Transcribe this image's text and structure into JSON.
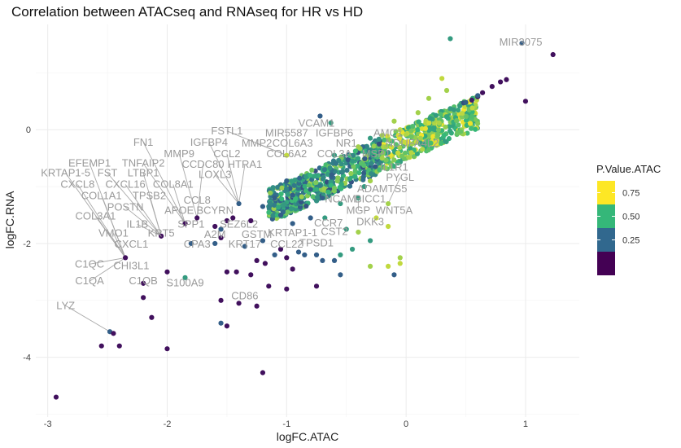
{
  "chart_data": {
    "type": "scatter",
    "title": "Correlation between ATACseq and RNAseq for HR vs HD",
    "xlabel": "logFC.ATAC",
    "ylabel": "logFC.RNA",
    "xlim": [
      -3.1,
      1.45
    ],
    "ylim": [
      -5.05,
      1.85
    ],
    "x_ticks": [
      -3,
      -2,
      -1,
      0,
      1
    ],
    "x_tick_labels": [
      "-3",
      "-2",
      "-1",
      "0",
      "1"
    ],
    "y_ticks": [
      -4,
      -2,
      0
    ],
    "y_tick_labels": [
      "-4",
      "-2",
      "0"
    ],
    "grid": true,
    "legend": {
      "title": "P.Value.ATAC",
      "placement": "right",
      "entries": [
        {
          "label": "0.75",
          "color": "#FDE725"
        },
        {
          "label": "0.50",
          "color": "#35B779"
        },
        {
          "label": "0.25",
          "color": "#31688E"
        },
        {
          "label": "",
          "color": "#440154"
        }
      ],
      "tick_labels": [
        "0.75",
        "0.50",
        "0.25"
      ]
    },
    "color_scale": [
      "#440154",
      "#31688E",
      "#35B779",
      "#FDE725"
    ],
    "points": [
      {
        "x": 0.37,
        "y": 1.6,
        "p": 0.55
      },
      {
        "x": 0.97,
        "y": 1.52,
        "p": 0.3
      },
      {
        "x": 1.23,
        "y": 1.32,
        "p": 0.05
      },
      {
        "x": 0.84,
        "y": 0.88,
        "p": 0.05
      },
      {
        "x": 0.79,
        "y": 0.84,
        "p": 0.05
      },
      {
        "x": 0.72,
        "y": 0.76,
        "p": 0.05
      },
      {
        "x": 0.64,
        "y": 0.65,
        "p": 0.05
      },
      {
        "x": 0.6,
        "y": 0.58,
        "p": 0.05
      },
      {
        "x": 0.55,
        "y": 0.52,
        "p": 0.1
      },
      {
        "x": 0.48,
        "y": 0.47,
        "p": 0.25
      },
      {
        "x": 0.3,
        "y": 0.9,
        "p": 0.9
      },
      {
        "x": 0.34,
        "y": 0.69,
        "p": 0.85
      },
      {
        "x": 0.19,
        "y": 0.55,
        "p": 0.85
      },
      {
        "x": 0.37,
        "y": 0.37,
        "p": 0.55
      },
      {
        "x": -0.72,
        "y": 0.24,
        "p": 0.3
      },
      {
        "x": -0.63,
        "y": 0.12,
        "p": 0.55
      },
      {
        "x": -1.0,
        "y": -0.45,
        "p": 0.9
      },
      {
        "x": 1.0,
        "y": 0.5,
        "p": 0.05
      },
      {
        "x": -0.1,
        "y": 0.15,
        "p": 0.85
      },
      {
        "x": 0.25,
        "y": 0.25,
        "p": 0.55
      },
      {
        "x": -0.3,
        "y": -0.15,
        "p": 0.55
      },
      {
        "x": 0.05,
        "y": -0.25,
        "p": 0.85
      },
      {
        "x": 0.12,
        "y": -0.15,
        "p": 0.85
      },
      {
        "x": -0.2,
        "y": -0.5,
        "p": 0.85
      },
      {
        "x": -0.15,
        "y": -0.4,
        "p": 0.55
      },
      {
        "x": -0.45,
        "y": -0.55,
        "p": 0.55
      },
      {
        "x": -0.3,
        "y": -0.9,
        "p": 0.85
      },
      {
        "x": -0.35,
        "y": -1.0,
        "p": 0.55
      },
      {
        "x": -0.15,
        "y": -1.3,
        "p": 0.85
      },
      {
        "x": -0.4,
        "y": -1.2,
        "p": 0.55
      },
      {
        "x": -0.55,
        "y": -1.3,
        "p": 0.55
      },
      {
        "x": -0.7,
        "y": -1.2,
        "p": 0.3
      },
      {
        "x": -0.8,
        "y": -1.05,
        "p": 0.3
      },
      {
        "x": -1.0,
        "y": -0.9,
        "p": 0.3
      },
      {
        "x": -0.95,
        "y": -1.15,
        "p": 0.3
      },
      {
        "x": -1.1,
        "y": -1.2,
        "p": 0.3
      },
      {
        "x": -1.2,
        "y": -1.35,
        "p": 0.3
      },
      {
        "x": -1.3,
        "y": -1.6,
        "p": 0.05
      },
      {
        "x": -1.4,
        "y": -1.3,
        "p": 0.3
      },
      {
        "x": -1.45,
        "y": -1.55,
        "p": 0.05
      },
      {
        "x": -1.5,
        "y": -1.6,
        "p": 0.05
      },
      {
        "x": -1.55,
        "y": -1.75,
        "p": 0.3
      },
      {
        "x": -1.55,
        "y": -1.9,
        "p": 0.05
      },
      {
        "x": -1.75,
        "y": -1.55,
        "p": 0.05
      },
      {
        "x": -1.85,
        "y": -1.65,
        "p": 0.05
      },
      {
        "x": -1.8,
        "y": -2.0,
        "p": 0.3
      },
      {
        "x": -2.05,
        "y": -1.87,
        "p": 0.05
      },
      {
        "x": -1.6,
        "y": -2.0,
        "p": 0.3
      },
      {
        "x": -1.35,
        "y": -2.05,
        "p": 0.3
      },
      {
        "x": -1.2,
        "y": -1.95,
        "p": 0.3
      },
      {
        "x": -1.25,
        "y": -2.3,
        "p": 0.05
      },
      {
        "x": -1.18,
        "y": -2.35,
        "p": 0.05
      },
      {
        "x": -1.1,
        "y": -2.2,
        "p": 0.3
      },
      {
        "x": -1.05,
        "y": -2.1,
        "p": 0.05
      },
      {
        "x": -1.0,
        "y": -2.25,
        "p": 0.05
      },
      {
        "x": -0.95,
        "y": -2.45,
        "p": 0.05
      },
      {
        "x": -0.9,
        "y": -2.15,
        "p": 0.3
      },
      {
        "x": -0.85,
        "y": -2.2,
        "p": 0.3
      },
      {
        "x": -0.75,
        "y": -2.2,
        "p": 0.3
      },
      {
        "x": -0.7,
        "y": -2.3,
        "p": 0.3
      },
      {
        "x": -0.6,
        "y": -2.3,
        "p": 0.3
      },
      {
        "x": -0.55,
        "y": -2.2,
        "p": 0.55
      },
      {
        "x": -0.45,
        "y": -2.1,
        "p": 0.55
      },
      {
        "x": -0.3,
        "y": -2.4,
        "p": 0.85
      },
      {
        "x": -0.15,
        "y": -2.4,
        "p": 0.9
      },
      {
        "x": -0.05,
        "y": -2.25,
        "p": 0.85
      },
      {
        "x": -0.1,
        "y": -2.55,
        "p": 0.3
      },
      {
        "x": -0.75,
        "y": -2.75,
        "p": 0.05
      },
      {
        "x": -1.0,
        "y": -2.8,
        "p": 0.05
      },
      {
        "x": -1.15,
        "y": -2.75,
        "p": 0.05
      },
      {
        "x": -1.3,
        "y": -2.55,
        "p": 0.05
      },
      {
        "x": -1.42,
        "y": -2.5,
        "p": 0.05
      },
      {
        "x": -1.5,
        "y": -2.5,
        "p": 0.05
      },
      {
        "x": -1.85,
        "y": -2.6,
        "p": 0.55
      },
      {
        "x": -2.0,
        "y": -2.5,
        "p": 0.05
      },
      {
        "x": -1.55,
        "y": -3.0,
        "p": 0.05
      },
      {
        "x": -1.4,
        "y": -3.05,
        "p": 0.05
      },
      {
        "x": -1.25,
        "y": -3.1,
        "p": 0.05
      },
      {
        "x": -2.2,
        "y": -2.7,
        "p": 0.05
      },
      {
        "x": -2.2,
        "y": -2.95,
        "p": 0.05
      },
      {
        "x": -1.5,
        "y": -3.45,
        "p": 0.05
      },
      {
        "x": -1.55,
        "y": -3.4,
        "p": 0.3
      },
      {
        "x": -2.13,
        "y": -3.3,
        "p": 0.05
      },
      {
        "x": -2.48,
        "y": -3.55,
        "p": 0.3
      },
      {
        "x": -2.45,
        "y": -3.58,
        "p": 0.05
      },
      {
        "x": -2.55,
        "y": -3.8,
        "p": 0.05
      },
      {
        "x": -2.4,
        "y": -3.8,
        "p": 0.05
      },
      {
        "x": -2.0,
        "y": -3.85,
        "p": 0.05
      },
      {
        "x": -2.93,
        "y": -4.7,
        "p": 0.05
      },
      {
        "x": -1.2,
        "y": -4.27,
        "p": 0.05
      },
      {
        "x": -0.05,
        "y": -2.35,
        "p": 0.9
      },
      {
        "x": -0.55,
        "y": -2.55,
        "p": 0.3
      },
      {
        "x": -2.35,
        "y": -2.25,
        "p": 0.05
      },
      {
        "x": -1.6,
        "y": -1.7,
        "p": 0.05
      },
      {
        "x": -1.05,
        "y": -1.5,
        "p": 0.3
      },
      {
        "x": -0.95,
        "y": -1.65,
        "p": 0.3
      },
      {
        "x": -0.8,
        "y": -1.55,
        "p": 0.3
      },
      {
        "x": -0.68,
        "y": -1.55,
        "p": 0.55
      },
      {
        "x": -0.5,
        "y": -1.75,
        "p": 0.55
      },
      {
        "x": -0.4,
        "y": -1.8,
        "p": 0.85
      },
      {
        "x": -0.25,
        "y": -1.55,
        "p": 0.9
      },
      {
        "x": -0.15,
        "y": -1.7,
        "p": 0.9
      },
      {
        "x": -0.3,
        "y": -1.95,
        "p": 0.55
      },
      {
        "x": 0.4,
        "y": 0.35,
        "p": 0.55
      },
      {
        "x": 0.45,
        "y": 0.42,
        "p": 0.55
      },
      {
        "x": 0.5,
        "y": 0.48,
        "p": 0.3
      },
      {
        "x": 0.6,
        "y": 0.6,
        "p": 0.3
      },
      {
        "x": 0.2,
        "y": 0.2,
        "p": 0.55
      },
      {
        "x": 0.1,
        "y": 0.3,
        "p": 0.85
      },
      {
        "x": -0.05,
        "y": 0.0,
        "p": 0.9
      },
      {
        "x": -0.2,
        "y": -0.1,
        "p": 0.85
      },
      {
        "x": -0.4,
        "y": -0.3,
        "p": 0.85
      },
      {
        "x": -0.6,
        "y": -0.45,
        "p": 0.55
      }
    ],
    "labels": [
      {
        "text": "MIR3075",
        "x": 0.96,
        "y": 1.48
      },
      {
        "text": "VCAM1",
        "x": -0.75,
        "y": 0.05
      },
      {
        "text": "FSTL1",
        "x": -1.5,
        "y": -0.08
      },
      {
        "text": "MIR5587",
        "x": -1.0,
        "y": -0.12
      },
      {
        "text": "IGFBP6",
        "x": -0.6,
        "y": -0.12
      },
      {
        "text": "AMC1",
        "x": -0.15,
        "y": -0.12
      },
      {
        "text": "FN1",
        "x": -2.2,
        "y": -0.28
      },
      {
        "text": "IGFBP4",
        "x": -1.65,
        "y": -0.28
      },
      {
        "text": "MMP2",
        "x": -1.25,
        "y": -0.3
      },
      {
        "text": "COL6A3",
        "x": -0.95,
        "y": -0.3
      },
      {
        "text": "NR1",
        "x": -0.5,
        "y": -0.3
      },
      {
        "text": "NDUFA4L2",
        "x": 0.05,
        "y": -0.3
      },
      {
        "text": "MMP9",
        "x": -1.9,
        "y": -0.48
      },
      {
        "text": "CCL2",
        "x": -1.5,
        "y": -0.48
      },
      {
        "text": "COL6A2",
        "x": -1.0,
        "y": -0.48
      },
      {
        "text": "COL3A",
        "x": -0.6,
        "y": -0.48
      },
      {
        "text": "MSP1",
        "x": -0.25,
        "y": -0.48
      },
      {
        "text": "EFEMP1",
        "x": -2.65,
        "y": -0.65
      },
      {
        "text": "TNFAIP2",
        "x": -2.2,
        "y": -0.65
      },
      {
        "text": "CCDC80",
        "x": -1.7,
        "y": -0.67
      },
      {
        "text": "HTRA1",
        "x": -1.35,
        "y": -0.67
      },
      {
        "text": "IL1R1",
        "x": -0.1,
        "y": -0.72
      },
      {
        "text": "KRTAP1-5",
        "x": -2.85,
        "y": -0.82
      },
      {
        "text": "FST",
        "x": -2.5,
        "y": -0.82
      },
      {
        "text": "LTBP1",
        "x": -2.2,
        "y": -0.82
      },
      {
        "text": "LOXL3",
        "x": -1.6,
        "y": -0.85
      },
      {
        "text": "PYGL",
        "x": -0.05,
        "y": -0.9
      },
      {
        "text": "CXCL8",
        "x": -2.75,
        "y": -1.02
      },
      {
        "text": "CXCL16",
        "x": -2.35,
        "y": -1.02
      },
      {
        "text": "COL8A1",
        "x": -1.95,
        "y": -1.02
      },
      {
        "text": "ADAMTS5",
        "x": -0.2,
        "y": -1.1
      },
      {
        "text": "COL1A1",
        "x": -2.55,
        "y": -1.22
      },
      {
        "text": "TPSB2",
        "x": -2.15,
        "y": -1.22
      },
      {
        "text": "CCL8",
        "x": -1.75,
        "y": -1.3
      },
      {
        "text": "NCAM",
        "x": -0.55,
        "y": -1.28
      },
      {
        "text": "BICC1",
        "x": -0.3,
        "y": -1.28
      },
      {
        "text": "POSTN",
        "x": -2.35,
        "y": -1.42
      },
      {
        "text": "WNT5A",
        "x": -0.1,
        "y": -1.48
      },
      {
        "text": "COL3A1",
        "x": -2.6,
        "y": -1.58
      },
      {
        "text": "APOE",
        "x": -1.9,
        "y": -1.48
      },
      {
        "text": "BCYRN",
        "x": -1.6,
        "y": -1.48
      },
      {
        "text": "MGP",
        "x": -0.4,
        "y": -1.48
      },
      {
        "text": "IL1B",
        "x": -2.25,
        "y": -1.72
      },
      {
        "text": "SPP1",
        "x": -1.8,
        "y": -1.72
      },
      {
        "text": "SEZ6L2",
        "x": -1.4,
        "y": -1.72
      },
      {
        "text": "CCR7",
        "x": -0.65,
        "y": -1.7
      },
      {
        "text": "DKK3",
        "x": -0.3,
        "y": -1.68
      },
      {
        "text": "VMO1",
        "x": -2.45,
        "y": -1.88
      },
      {
        "text": "KRT5",
        "x": -2.05,
        "y": -1.88
      },
      {
        "text": "A2M",
        "x": -1.6,
        "y": -1.9
      },
      {
        "text": "GSTM",
        "x": -1.25,
        "y": -1.9
      },
      {
        "text": "KRTAP1-1",
        "x": -0.95,
        "y": -1.87
      },
      {
        "text": "CST2",
        "x": -0.6,
        "y": -1.85
      },
      {
        "text": "CXCL1",
        "x": -2.3,
        "y": -2.07
      },
      {
        "text": "CPA3",
        "x": -1.75,
        "y": -2.07
      },
      {
        "text": "KRT17",
        "x": -1.35,
        "y": -2.07
      },
      {
        "text": "CCL22",
        "x": -1.0,
        "y": -2.07
      },
      {
        "text": "TPSD1",
        "x": -0.75,
        "y": -2.05
      },
      {
        "text": "C1QC",
        "x": -2.65,
        "y": -2.42
      },
      {
        "text": "CHI3L1",
        "x": -2.3,
        "y": -2.45
      },
      {
        "text": "C1QA",
        "x": -2.65,
        "y": -2.72
      },
      {
        "text": "C1QB",
        "x": -2.2,
        "y": -2.72
      },
      {
        "text": "S100A9",
        "x": -1.85,
        "y": -2.75
      },
      {
        "text": "CD86",
        "x": -1.35,
        "y": -2.98
      },
      {
        "text": "LYZ",
        "x": -2.85,
        "y": -3.15
      }
    ]
  }
}
